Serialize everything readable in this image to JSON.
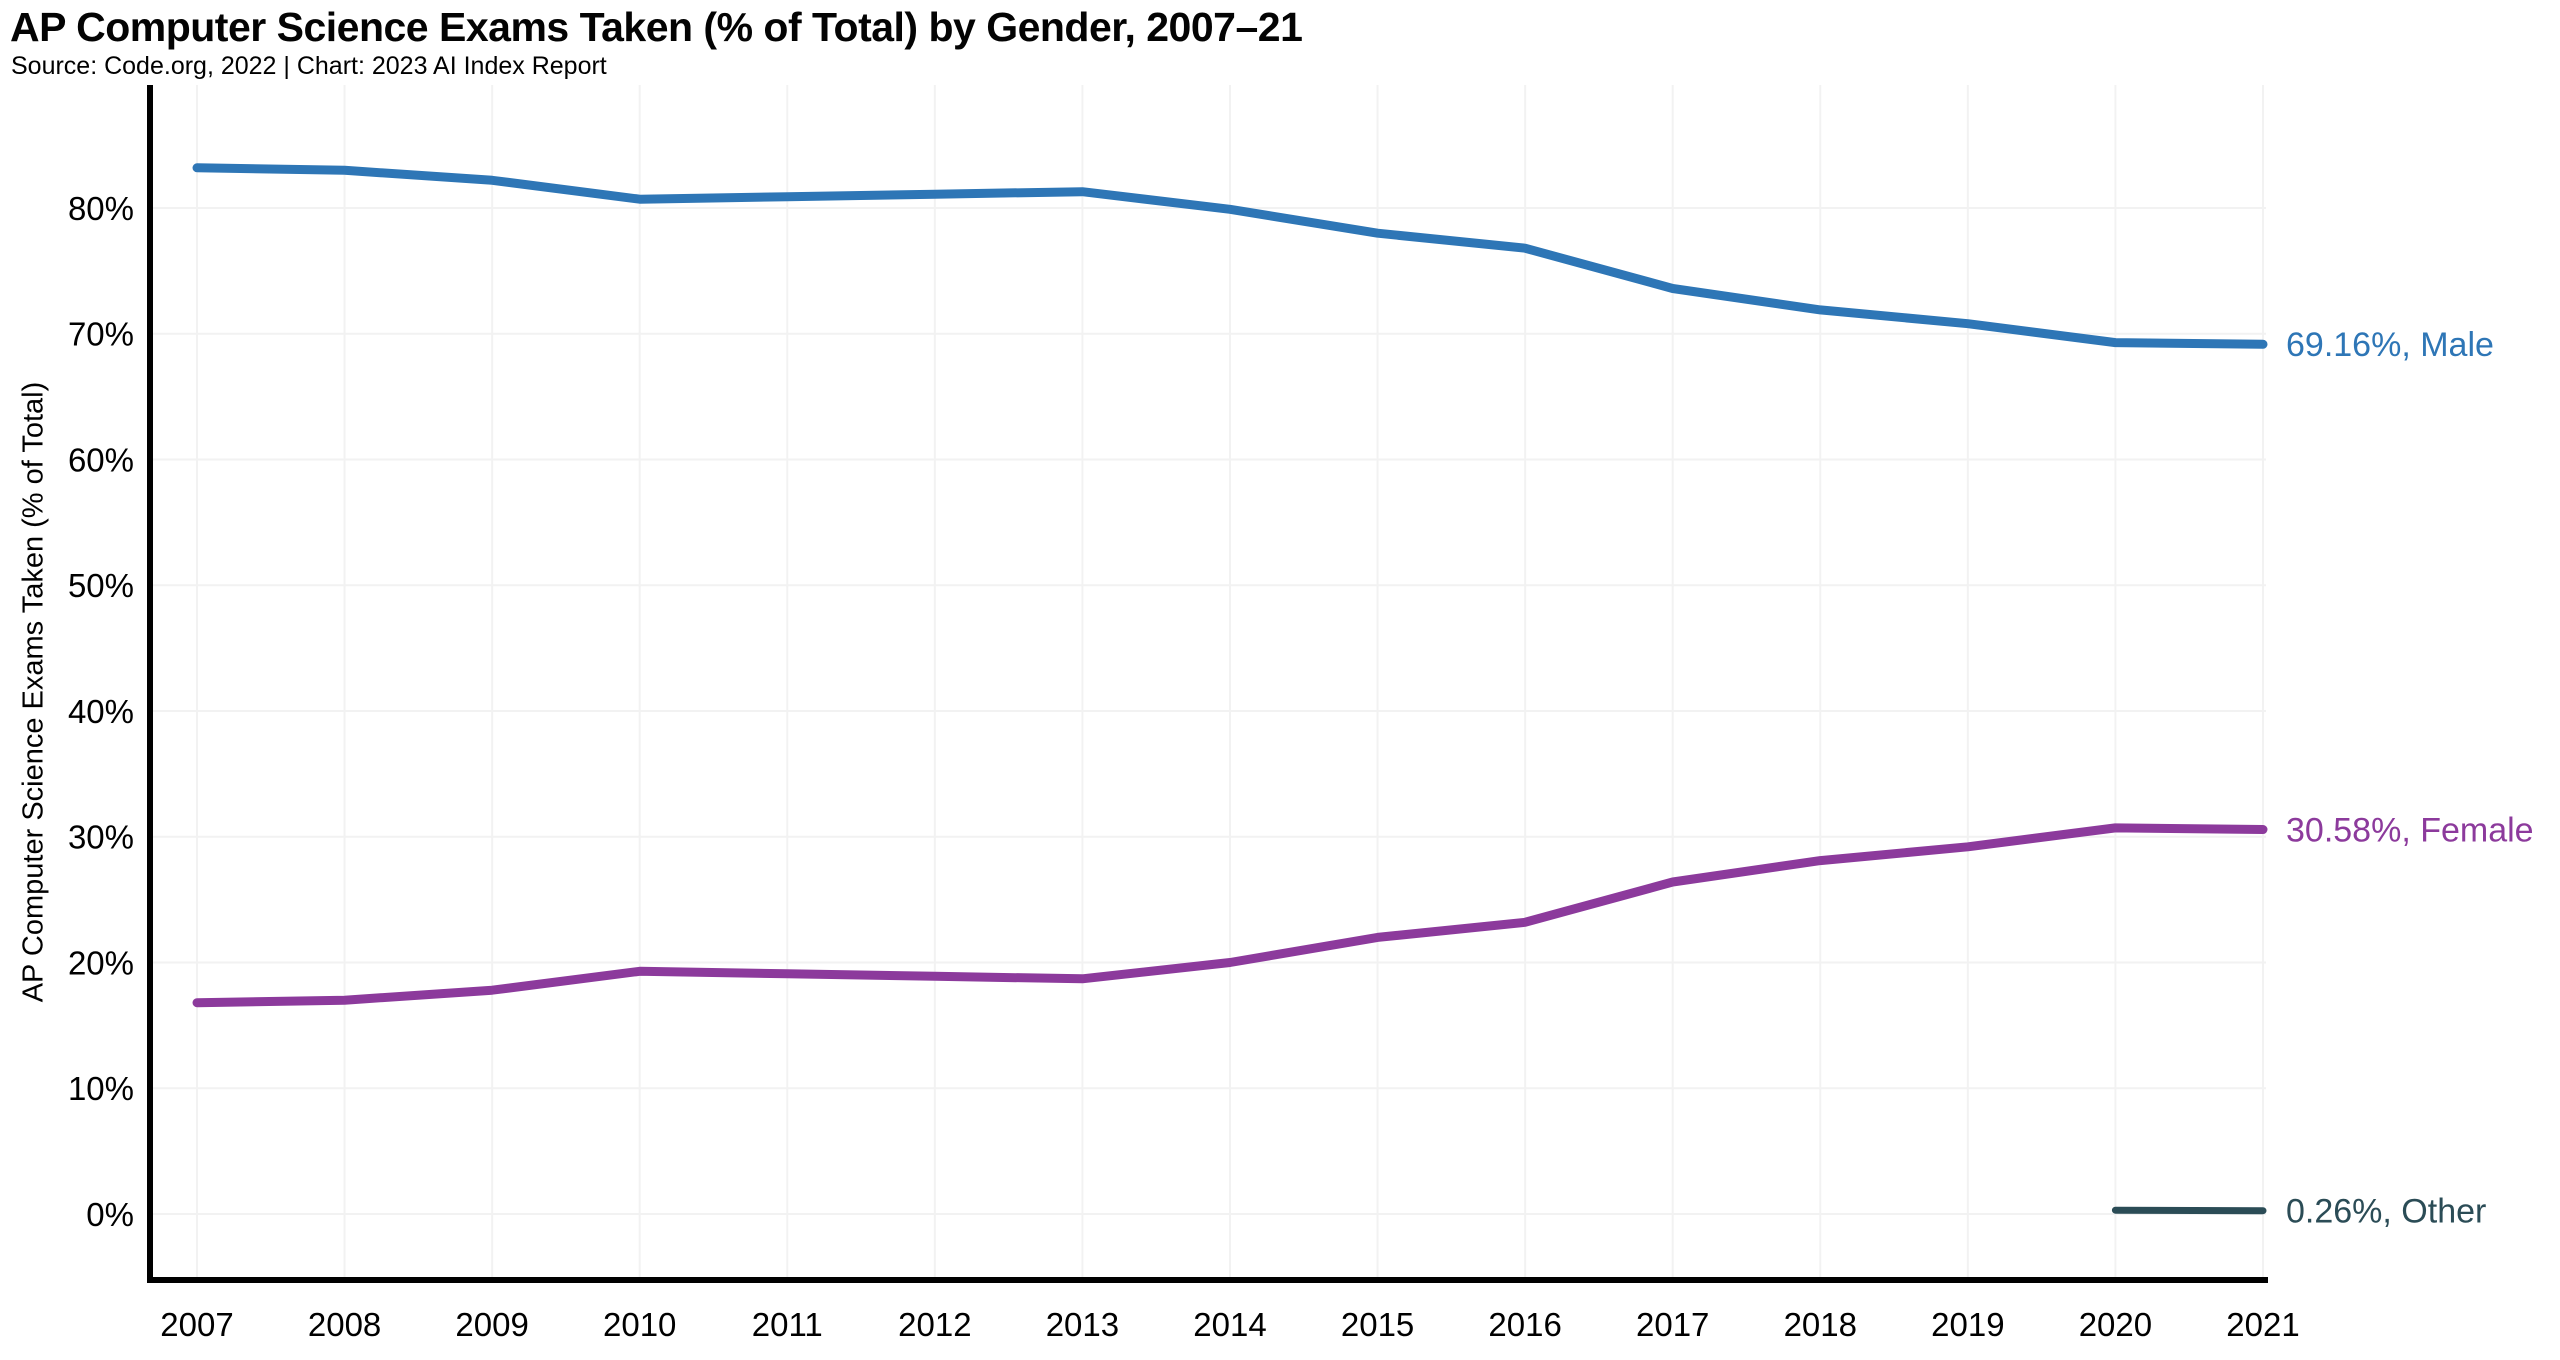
{
  "header": {
    "title": "AP Computer Science Exams Taken (% of Total) by Gender, 2007–21",
    "subtitle": "Source: Code.org, 2022 | Chart: 2023 AI Index Report"
  },
  "colors": {
    "male": "#2e76b6",
    "female": "#8c3a9c",
    "other": "#2b4c56",
    "axis": "#000000",
    "gridline": "#f2f2f2",
    "tick_text": "#000000"
  },
  "chart_data": {
    "type": "line",
    "title": "AP Computer Science Exams Taken (% of Total) by Gender, 2007–21",
    "subtitle": "Source: Code.org, 2022 | Chart: 2023 AI Index Report",
    "xlabel": "",
    "ylabel": "AP Computer Science Exams Taken (% of Total)",
    "x": [
      2007,
      2008,
      2009,
      2010,
      2011,
      2012,
      2013,
      2014,
      2015,
      2016,
      2017,
      2018,
      2019,
      2020,
      2021
    ],
    "series": [
      {
        "name": "Male",
        "color": "#2e76b6",
        "values": [
          83.2,
          83.0,
          82.2,
          80.7,
          80.9,
          81.1,
          81.3,
          79.9,
          78.0,
          76.8,
          73.6,
          71.9,
          70.8,
          69.3,
          69.16
        ],
        "end_label": "69.16%, Male"
      },
      {
        "name": "Female",
        "color": "#8c3a9c",
        "values": [
          16.8,
          17.0,
          17.8,
          19.3,
          19.1,
          18.9,
          18.7,
          20.0,
          22.0,
          23.2,
          26.4,
          28.1,
          29.2,
          30.7,
          30.58
        ],
        "end_label": "30.58%, Female"
      },
      {
        "name": "Other",
        "color": "#2b4c56",
        "values": [
          null,
          null,
          null,
          null,
          null,
          null,
          null,
          null,
          null,
          null,
          null,
          null,
          null,
          0.3,
          0.26
        ],
        "end_label": "0.26%, Other"
      }
    ],
    "ylim": [
      0,
      90
    ],
    "yticks": [
      0,
      10,
      20,
      30,
      40,
      50,
      60,
      70,
      80
    ],
    "ytick_suffix": "%",
    "grid": true,
    "legend_position": "right-end-of-line"
  }
}
